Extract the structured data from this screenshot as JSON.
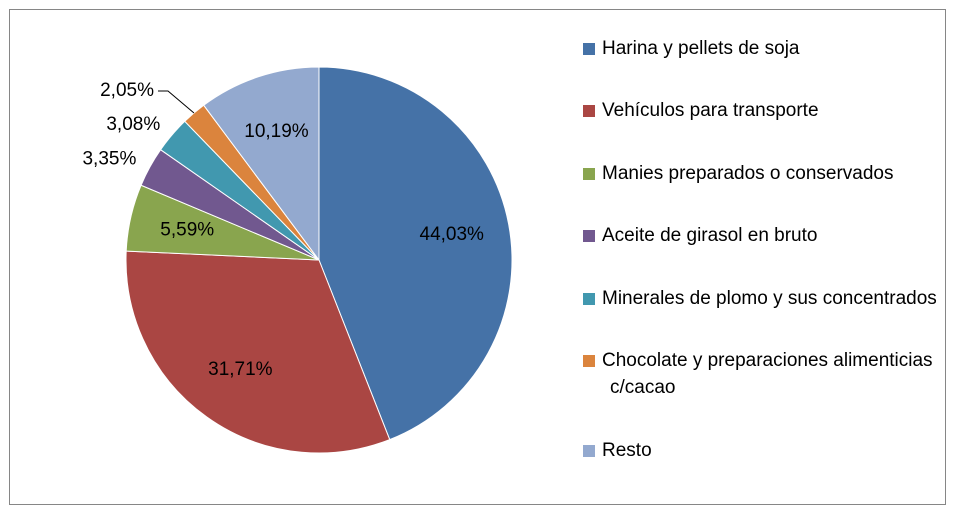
{
  "chart_data": {
    "type": "pie",
    "categories": [
      "Harina y pellets de soja",
      "Vehículos para transporte",
      "Manies preparados o conservados",
      "Aceite de girasol en bruto",
      "Minerales de plomo y sus concentrados",
      "Chocolate y preparaciones alimenticias c/cacao",
      "Resto"
    ],
    "values": [
      44.03,
      31.71,
      5.59,
      3.35,
      3.08,
      2.05,
      10.19
    ],
    "value_labels": [
      "44,03%",
      "31,71%",
      "5,59%",
      "3,35%",
      "3,08%",
      "2,05%",
      "10,19%"
    ],
    "colors": [
      "#4572A7",
      "#AA4643",
      "#89A54E",
      "#71588F",
      "#4198AF",
      "#DB843D",
      "#93A9CF"
    ],
    "legend": "right"
  }
}
